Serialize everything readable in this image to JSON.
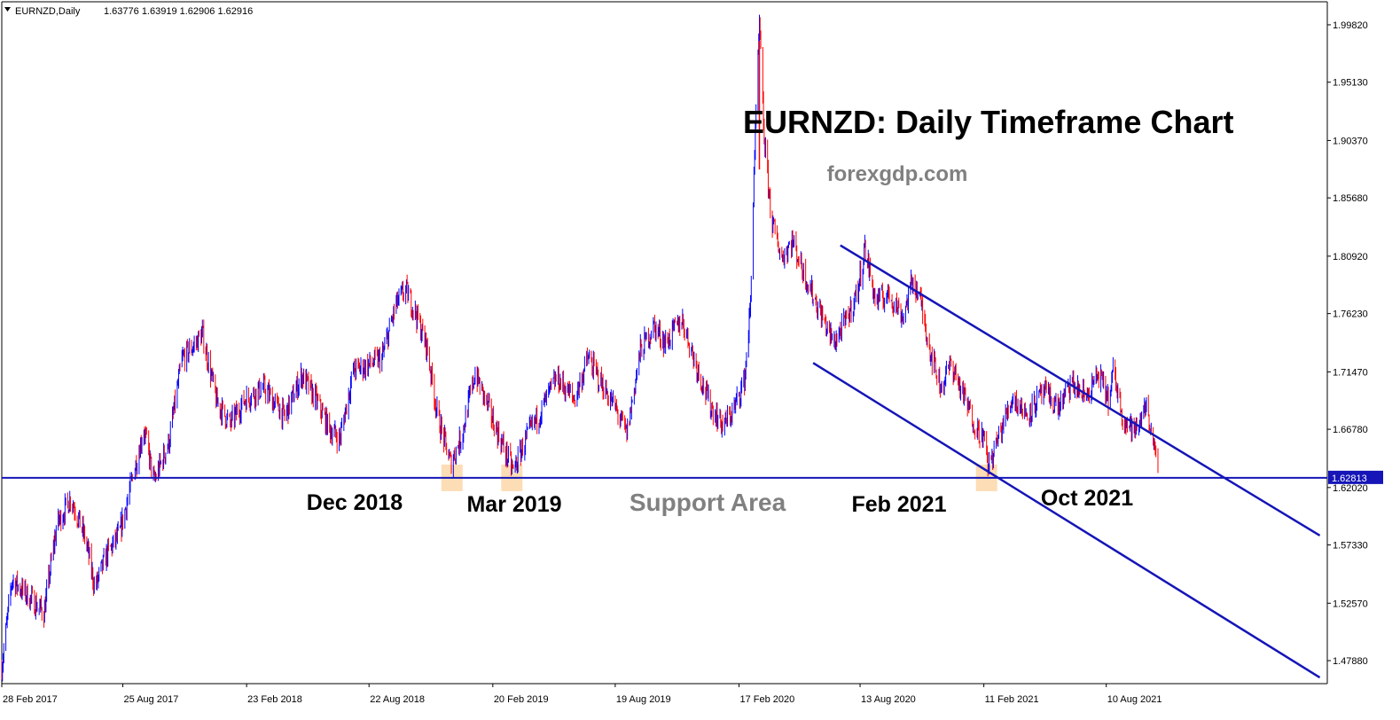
{
  "header": {
    "symbol": "EURNZD,Daily",
    "ohlc": "1.63776 1.63919 1.62906 1.62916"
  },
  "colors": {
    "up": "#0000ff",
    "down": "#ff0000",
    "line": "#1515b8",
    "highlight": "#fbd7a8",
    "current_label_bg": "#1515b8",
    "watermark": "#808080"
  },
  "chart_data": {
    "type": "line",
    "title": "EURNZD: Daily Timeframe Chart",
    "source": "forexgdp.com",
    "ylim": [
      1.46,
      2.017
    ],
    "y_ticks": [
      "1.99820",
      "1.95130",
      "1.90370",
      "1.85680",
      "1.80920",
      "1.76230",
      "1.71470",
      "1.66780",
      "1.62020",
      "1.57330",
      "1.52570",
      "1.47880"
    ],
    "x_tick_labels": [
      "28 Feb 2017",
      "25 Aug 2017",
      "23 Feb 2018",
      "22 Aug 2018",
      "20 Feb 2019",
      "19 Aug 2019",
      "17 Feb 2020",
      "13 Aug 2020",
      "11 Feb 2021",
      "10 Aug 2021"
    ],
    "current_price": "1.62813",
    "support_level": 1.6281,
    "price_path": [
      [
        "2017-02-28",
        1.474
      ],
      [
        "2017-03-15",
        1.545
      ],
      [
        "2017-04-10",
        1.53
      ],
      [
        "2017-05-01",
        1.518
      ],
      [
        "2017-05-20",
        1.59
      ],
      [
        "2017-06-10",
        1.612
      ],
      [
        "2017-07-01",
        1.578
      ],
      [
        "2017-07-15",
        1.538
      ],
      [
        "2017-08-01",
        1.565
      ],
      [
        "2017-08-20",
        1.582
      ],
      [
        "2017-09-10",
        1.632
      ],
      [
        "2017-09-25",
        1.668
      ],
      [
        "2017-10-10",
        1.625
      ],
      [
        "2017-11-01",
        1.658
      ],
      [
        "2017-11-20",
        1.725
      ],
      [
        "2017-12-10",
        1.738
      ],
      [
        "2017-12-20",
        1.746
      ],
      [
        "2018-01-10",
        1.69
      ],
      [
        "2018-01-30",
        1.672
      ],
      [
        "2018-02-20",
        1.692
      ],
      [
        "2018-03-20",
        1.702
      ],
      [
        "2018-04-20",
        1.678
      ],
      [
        "2018-05-15",
        1.712
      ],
      [
        "2018-06-05",
        1.692
      ],
      [
        "2018-06-25",
        1.668
      ],
      [
        "2018-07-10",
        1.66
      ],
      [
        "2018-07-30",
        1.716
      ],
      [
        "2018-08-20",
        1.72
      ],
      [
        "2018-09-10",
        1.726
      ],
      [
        "2018-10-01",
        1.77
      ],
      [
        "2018-10-15",
        1.782
      ],
      [
        "2018-10-30",
        1.762
      ],
      [
        "2018-11-15",
        1.735
      ],
      [
        "2018-12-01",
        1.678
      ],
      [
        "2018-12-20",
        1.64
      ],
      [
        "2019-01-05",
        1.662
      ],
      [
        "2019-01-25",
        1.714
      ],
      [
        "2019-02-10",
        1.69
      ],
      [
        "2019-02-25",
        1.668
      ],
      [
        "2019-03-10",
        1.65
      ],
      [
        "2019-03-22",
        1.634
      ],
      [
        "2019-04-10",
        1.66
      ],
      [
        "2019-05-01",
        1.682
      ],
      [
        "2019-05-25",
        1.71
      ],
      [
        "2019-06-20",
        1.692
      ],
      [
        "2019-07-10",
        1.726
      ],
      [
        "2019-07-30",
        1.705
      ],
      [
        "2019-08-20",
        1.684
      ],
      [
        "2019-09-05",
        1.664
      ],
      [
        "2019-09-25",
        1.732
      ],
      [
        "2019-10-15",
        1.752
      ],
      [
        "2019-11-01",
        1.738
      ],
      [
        "2019-11-25",
        1.758
      ],
      [
        "2019-12-15",
        1.722
      ],
      [
        "2020-01-05",
        1.688
      ],
      [
        "2020-01-25",
        1.67
      ],
      [
        "2020-02-10",
        1.685
      ],
      [
        "2020-02-25",
        1.708
      ],
      [
        "2020-03-05",
        1.77
      ],
      [
        "2020-03-10",
        1.88
      ],
      [
        "2020-03-18",
        1.998
      ],
      [
        "2020-03-25",
        1.905
      ],
      [
        "2020-04-05",
        1.838
      ],
      [
        "2020-04-20",
        1.808
      ],
      [
        "2020-05-05",
        1.822
      ],
      [
        "2020-05-25",
        1.792
      ],
      [
        "2020-06-15",
        1.764
      ],
      [
        "2020-07-05",
        1.738
      ],
      [
        "2020-07-25",
        1.758
      ],
      [
        "2020-08-10",
        1.782
      ],
      [
        "2020-08-20",
        1.816
      ],
      [
        "2020-09-05",
        1.772
      ],
      [
        "2020-09-25",
        1.778
      ],
      [
        "2020-10-15",
        1.76
      ],
      [
        "2020-10-30",
        1.79
      ],
      [
        "2020-11-10",
        1.772
      ],
      [
        "2020-11-25",
        1.73
      ],
      [
        "2020-12-10",
        1.702
      ],
      [
        "2020-12-25",
        1.722
      ],
      [
        "2021-01-10",
        1.698
      ],
      [
        "2021-01-30",
        1.67
      ],
      [
        "2021-02-10",
        1.662
      ],
      [
        "2021-02-18",
        1.637
      ],
      [
        "2021-03-05",
        1.662
      ],
      [
        "2021-03-25",
        1.694
      ],
      [
        "2021-04-15",
        1.68
      ],
      [
        "2021-05-10",
        1.698
      ],
      [
        "2021-06-01",
        1.686
      ],
      [
        "2021-06-20",
        1.705
      ],
      [
        "2021-07-10",
        1.694
      ],
      [
        "2021-07-30",
        1.712
      ],
      [
        "2021-08-15",
        1.69
      ],
      [
        "2021-08-20",
        1.716
      ],
      [
        "2021-09-05",
        1.675
      ],
      [
        "2021-09-25",
        1.665
      ],
      [
        "2021-10-05",
        1.69
      ],
      [
        "2021-10-15",
        1.67
      ],
      [
        "2021-10-25",
        1.629
      ]
    ],
    "trendlines": [
      {
        "name": "channel-upper",
        "from": [
          "2020-07-15",
          1.818
        ],
        "to": [
          "2022-06-20",
          1.581
        ]
      },
      {
        "name": "channel-lower",
        "from": [
          "2020-06-05",
          1.722
        ],
        "to": [
          "2022-06-20",
          1.465
        ]
      }
    ],
    "highlights": [
      {
        "date": "2018-12-22",
        "price": 1.6281
      },
      {
        "date": "2019-03-20",
        "price": 1.6281
      },
      {
        "date": "2021-02-15",
        "price": 1.6281
      }
    ],
    "annotations": [
      "Dec 2018",
      "Mar 2019",
      "Support Area",
      "Feb 2021",
      "Oct 2021"
    ]
  }
}
